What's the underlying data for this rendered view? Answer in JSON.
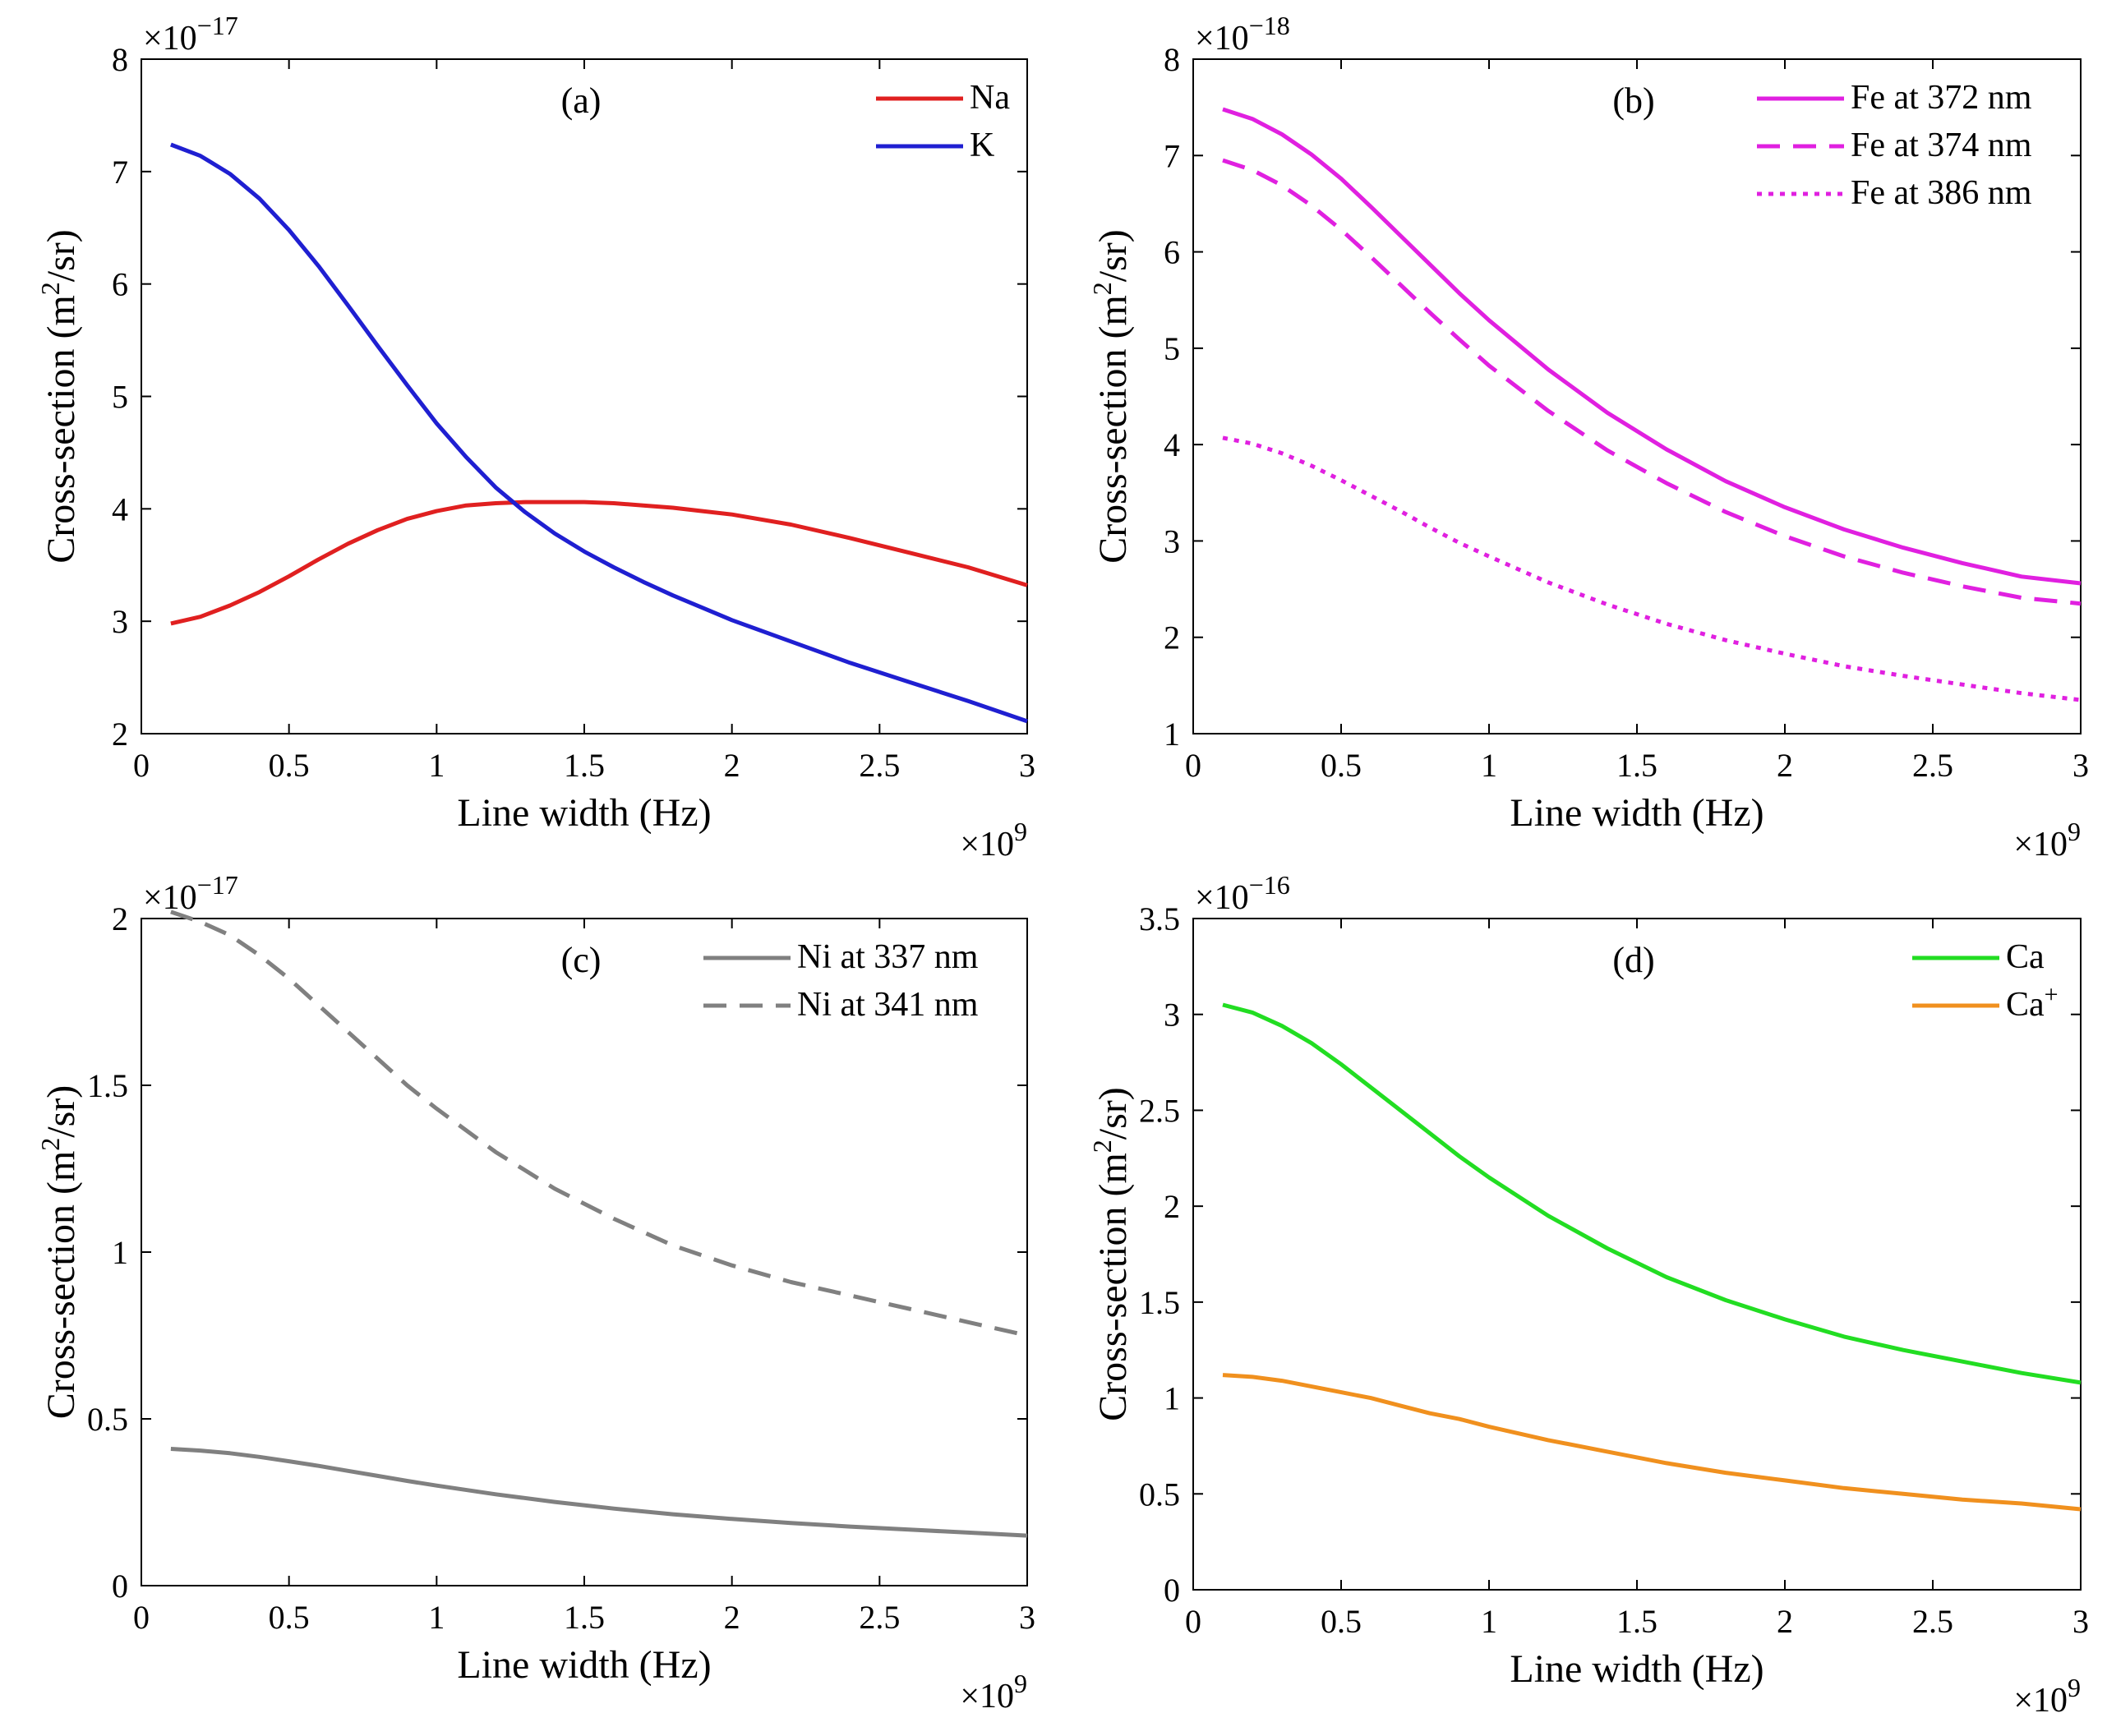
{
  "chart_data": [
    {
      "type": "line",
      "panel_label": "(a)",
      "xlabel": "Line width (Hz)",
      "ylabel": "Cross-section (m",
      "ylabel_sup": "2",
      "ylabel_tail": "/sr)",
      "xlim": [
        0,
        3
      ],
      "ylim": [
        2,
        8
      ],
      "x_ticks": [
        0,
        0.5,
        1,
        1.5,
        2,
        2.5,
        3
      ],
      "x_tick_labels": [
        "0",
        "0.5",
        "1",
        "1.5",
        "2",
        "2.5",
        "3"
      ],
      "y_ticks": [
        2,
        3,
        4,
        5,
        6,
        7,
        8
      ],
      "y_tick_labels": [
        "2",
        "3",
        "4",
        "5",
        "6",
        "7",
        "8"
      ],
      "x_exponent_prefix": "×10",
      "x_exponent_sup": "9",
      "y_exponent_prefix": "×10",
      "y_exponent_sup": "−17",
      "legend_position": "top-right",
      "x": [
        0.1,
        0.2,
        0.3,
        0.4,
        0.5,
        0.6,
        0.7,
        0.8,
        0.9,
        1.0,
        1.1,
        1.2,
        1.3,
        1.4,
        1.5,
        1.6,
        1.7,
        1.8,
        1.9,
        2.0,
        2.2,
        2.4,
        2.6,
        2.8,
        3.0
      ],
      "series": [
        {
          "name": "Na",
          "color": "#e02020",
          "dash": "solid",
          "values": [
            2.98,
            3.04,
            3.14,
            3.26,
            3.4,
            3.55,
            3.69,
            3.81,
            3.91,
            3.98,
            4.03,
            4.05,
            4.06,
            4.06,
            4.06,
            4.05,
            4.03,
            4.01,
            3.98,
            3.95,
            3.86,
            3.74,
            3.61,
            3.48,
            3.32
          ]
        },
        {
          "name": "K",
          "color": "#1f1fd1",
          "dash": "solid",
          "values": [
            7.24,
            7.14,
            6.98,
            6.76,
            6.48,
            6.16,
            5.81,
            5.45,
            5.1,
            4.76,
            4.46,
            4.19,
            3.97,
            3.78,
            3.62,
            3.48,
            3.35,
            3.23,
            3.12,
            3.01,
            2.82,
            2.63,
            2.46,
            2.29,
            2.11
          ]
        }
      ]
    },
    {
      "type": "line",
      "panel_label": "(b)",
      "xlabel": "Line width (Hz)",
      "ylabel": "Cross-section (m",
      "ylabel_sup": "2",
      "ylabel_tail": "/sr)",
      "xlim": [
        0,
        3
      ],
      "ylim": [
        1,
        8
      ],
      "x_ticks": [
        0,
        0.5,
        1,
        1.5,
        2,
        2.5,
        3
      ],
      "x_tick_labels": [
        "0",
        "0.5",
        "1",
        "1.5",
        "2",
        "2.5",
        "3"
      ],
      "y_ticks": [
        1,
        2,
        3,
        4,
        5,
        6,
        7,
        8
      ],
      "y_tick_labels": [
        "1",
        "2",
        "3",
        "4",
        "5",
        "6",
        "7",
        "8"
      ],
      "x_exponent_prefix": "×10",
      "x_exponent_sup": "9",
      "y_exponent_prefix": "×10",
      "y_exponent_sup": "−18",
      "legend_position": "top-right",
      "x": [
        0.1,
        0.2,
        0.3,
        0.4,
        0.5,
        0.6,
        0.7,
        0.8,
        0.9,
        1.0,
        1.2,
        1.4,
        1.6,
        1.8,
        2.0,
        2.2,
        2.4,
        2.6,
        2.8,
        3.0
      ],
      "series": [
        {
          "name": "Fe at 372 nm",
          "color": "#e020e0",
          "dash": "solid",
          "values": [
            7.48,
            7.38,
            7.22,
            7.01,
            6.76,
            6.47,
            6.17,
            5.87,
            5.57,
            5.29,
            4.78,
            4.33,
            3.95,
            3.62,
            3.35,
            3.12,
            2.93,
            2.77,
            2.63,
            2.56
          ]
        },
        {
          "name": "Fe at 374 nm",
          "color": "#e020e0",
          "dash": "dashed",
          "values": [
            6.95,
            6.85,
            6.69,
            6.48,
            6.23,
            5.95,
            5.66,
            5.37,
            5.09,
            4.82,
            4.35,
            3.94,
            3.6,
            3.3,
            3.05,
            2.84,
            2.67,
            2.53,
            2.41,
            2.35
          ]
        },
        {
          "name": "Fe at 386 nm",
          "color": "#e020e0",
          "dash": "dotted",
          "values": [
            4.07,
            4.01,
            3.91,
            3.78,
            3.63,
            3.47,
            3.31,
            3.14,
            2.98,
            2.84,
            2.57,
            2.34,
            2.14,
            1.97,
            1.83,
            1.7,
            1.6,
            1.51,
            1.42,
            1.35
          ]
        }
      ]
    },
    {
      "type": "line",
      "panel_label": "(c)",
      "xlabel": "Line width (Hz)",
      "ylabel": "Cross-section (m",
      "ylabel_sup": "2",
      "ylabel_tail": "/sr)",
      "xlim": [
        0,
        3
      ],
      "ylim": [
        0,
        2
      ],
      "x_ticks": [
        0,
        0.5,
        1,
        1.5,
        2,
        2.5,
        3
      ],
      "x_tick_labels": [
        "0",
        "0.5",
        "1",
        "1.5",
        "2",
        "2.5",
        "3"
      ],
      "y_ticks": [
        0,
        0.5,
        1,
        1.5,
        2
      ],
      "y_tick_labels": [
        "0",
        "0.5",
        "1",
        "1.5",
        "2"
      ],
      "x_exponent_prefix": "×10",
      "x_exponent_sup": "9",
      "y_exponent_prefix": "×10",
      "y_exponent_sup": "−17",
      "legend_position": "top-right",
      "x": [
        0.1,
        0.2,
        0.3,
        0.4,
        0.5,
        0.6,
        0.7,
        0.8,
        0.9,
        1.0,
        1.2,
        1.4,
        1.6,
        1.8,
        2.0,
        2.2,
        2.4,
        2.6,
        2.8,
        3.0
      ],
      "series": [
        {
          "name": "Ni at 337 nm",
          "color": "#808080",
          "dash": "solid",
          "values": [
            0.41,
            0.405,
            0.397,
            0.386,
            0.373,
            0.359,
            0.344,
            0.329,
            0.314,
            0.3,
            0.274,
            0.251,
            0.231,
            0.214,
            0.2,
            0.188,
            0.177,
            0.168,
            0.159,
            0.15
          ]
        },
        {
          "name": "Ni at 341 nm",
          "color": "#808080",
          "dash": "dashed",
          "values": [
            2.02,
            1.99,
            1.95,
            1.89,
            1.82,
            1.74,
            1.66,
            1.58,
            1.5,
            1.43,
            1.3,
            1.19,
            1.1,
            1.02,
            0.96,
            0.91,
            0.87,
            0.83,
            0.79,
            0.75
          ]
        }
      ]
    },
    {
      "type": "line",
      "panel_label": "(d)",
      "xlabel": "Line width (Hz)",
      "ylabel": "Cross-section (m",
      "ylabel_sup": "2",
      "ylabel_tail": "/sr)",
      "xlim": [
        0,
        3
      ],
      "ylim": [
        0,
        3.5
      ],
      "x_ticks": [
        0,
        0.5,
        1,
        1.5,
        2,
        2.5,
        3
      ],
      "x_tick_labels": [
        "0",
        "0.5",
        "1",
        "1.5",
        "2",
        "2.5",
        "3"
      ],
      "y_ticks": [
        0,
        0.5,
        1,
        1.5,
        2,
        2.5,
        3,
        3.5
      ],
      "y_tick_labels": [
        "0",
        "0.5",
        "1",
        "1.5",
        "2",
        "2.5",
        "3",
        "3.5"
      ],
      "x_exponent_prefix": "×10",
      "x_exponent_sup": "9",
      "y_exponent_prefix": "×10",
      "y_exponent_sup": "−16",
      "legend_position": "top-right",
      "x": [
        0.1,
        0.2,
        0.3,
        0.4,
        0.5,
        0.6,
        0.7,
        0.8,
        0.9,
        1.0,
        1.2,
        1.4,
        1.6,
        1.8,
        2.0,
        2.2,
        2.4,
        2.6,
        2.8,
        3.0
      ],
      "series": [
        {
          "name": "Ca",
          "name_sup": "",
          "color": "#22dd22",
          "dash": "solid",
          "values": [
            3.05,
            3.01,
            2.94,
            2.85,
            2.74,
            2.62,
            2.5,
            2.38,
            2.26,
            2.15,
            1.95,
            1.78,
            1.63,
            1.51,
            1.41,
            1.32,
            1.25,
            1.19,
            1.13,
            1.08
          ]
        },
        {
          "name": "Ca",
          "name_sup": "+",
          "color": "#f0901e",
          "dash": "solid",
          "values": [
            1.12,
            1.11,
            1.09,
            1.06,
            1.03,
            1.0,
            0.96,
            0.92,
            0.89,
            0.85,
            0.78,
            0.72,
            0.66,
            0.61,
            0.57,
            0.53,
            0.5,
            0.47,
            0.45,
            0.42
          ]
        }
      ]
    }
  ]
}
